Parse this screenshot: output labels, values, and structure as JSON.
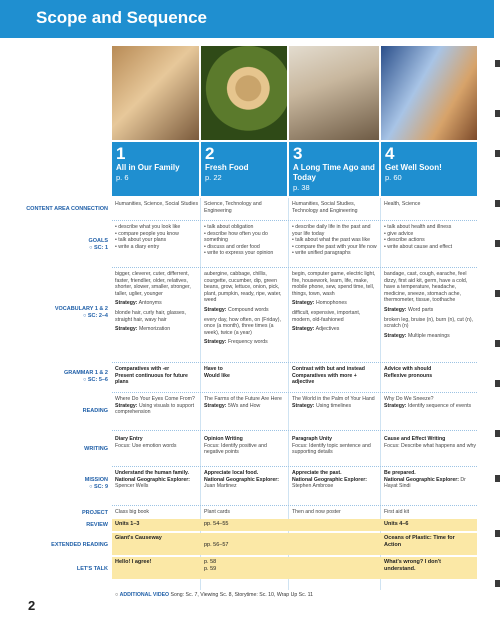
{
  "title": "Scope and Sequence",
  "page_number": "2",
  "units": [
    {
      "num": "1",
      "name": "All in Our Family",
      "page": "p. 6"
    },
    {
      "num": "2",
      "name": "Fresh Food",
      "page": "p. 22"
    },
    {
      "num": "3",
      "name": "A Long Time Ago and Today",
      "page": "p. 38"
    },
    {
      "num": "4",
      "name": "Get Well Soon!",
      "page": "p. 60"
    }
  ],
  "labels": {
    "content": "CONTENT AREA CONNECTION",
    "goals": "GOALS",
    "goals_sub": "SC: 1",
    "vocab": "VOCABULARY 1 & 2",
    "vocab_sub": "SC: 2–4",
    "grammar": "GRAMMAR 1 & 2",
    "grammar_sub": "SC: 5–6",
    "reading": "READING",
    "writing": "WRITING",
    "mission": "MISSION",
    "mission_sub": "SC: 9",
    "project": "PROJECT",
    "review": "REVIEW",
    "extended": "EXTENDED READING",
    "letstalk": "LET'S TALK"
  },
  "content": [
    "Humanities, Science, Social Studies",
    "Science, Technology and Engineering",
    "Humanities, Social Studies, Technology and Engineering",
    "Health, Science"
  ],
  "goals": [
    [
      "describe what you look like",
      "compare people you know",
      "talk about your plans",
      "write a diary entry"
    ],
    [
      "talk about obligation",
      "describe how often you do something",
      "discuss and order food",
      "write to express your opinion"
    ],
    [
      "describe daily life in the past and your life today",
      "talk about what the past was like",
      "compare the past with your life now",
      "write unified paragraphs"
    ],
    [
      "talk about health and illness",
      "give advice",
      "describe actions",
      "write about cause and effect"
    ]
  ],
  "vocab": [
    {
      "words": "bigger, cleverer, cuter, differrent, faster, friendlier, older, relatives, shorter, slower, smaller, stronger, taller, uglier, younger",
      "strat1": "Antonyms",
      "words2": "blonde hair, curly hair, glasses, straight hair, wavy hair",
      "strat2": "Memorization"
    },
    {
      "words": "aubergine, cabbage, chillis, courgette, cucumber, dip, green beans, grow, lettuce, onion, pick, plant, pumpkin, ready, ripe, water, weed",
      "strat1": "Compound words",
      "words2": "every day, how often, on (Friday), once (a month), three times (a week), twice (a year)",
      "strat2": "Frequency words"
    },
    {
      "words": "begin, computer game, electric light, fire, housework, learn, life, make, mobile phone, sew, spend time, tell, things, town, wash",
      "strat1": "Homophones",
      "words2": "difficult, expensive, important, modern, old-fashioned",
      "strat2": "Adjectives"
    },
    {
      "words": "bandage, cast, cough, earache, feel dizzy, first aid kit, germ, have a cold, have a temperature, headache, medicine, sneeze, stomach ache, thermometer, tissue, toothache",
      "strat1": "Word parts",
      "words2": "broken leg, bruise (n), burn (n), cut (n), scratch (n)",
      "strat2": "Multiple meanings"
    }
  ],
  "strategy_label": "Strategy:",
  "grammar": [
    {
      "a": "Comparatives with -er",
      "b": "Present continuous for future plans"
    },
    {
      "a": "Have to",
      "b": "Would like"
    },
    {
      "a": "Contrast with but and instead",
      "b": "Comparatives with more + adjective"
    },
    {
      "a": "Advice with should",
      "b": "Reflexive pronouns"
    }
  ],
  "reading": [
    {
      "text": "Where Do Your Eyes Come From?",
      "strat": "Using visuals to support comprehension"
    },
    {
      "text": "The Farms of the Future Are Here",
      "strat": "5Ws and How"
    },
    {
      "text": "The World in the Palm of Your Hand",
      "strat": "Using timelines"
    },
    {
      "text": "Why Do We Sneeze?",
      "strat": "Identify sequence of events"
    }
  ],
  "writing": [
    {
      "a": "Diary Entry",
      "b": "Focus: Use emotion words"
    },
    {
      "a": "Opinion Writing",
      "b": "Focus: Identify positive and negative points"
    },
    {
      "a": "Paragraph Unity",
      "b": "Focus: Identify topic sentence and supporting details"
    },
    {
      "a": "Cause and Effect Writing",
      "b": "Focus: Describe what happens and why"
    }
  ],
  "mission": [
    {
      "a": "Understand the human family.",
      "b": "National Geographic Explorer:",
      "c": "Spencer Wells"
    },
    {
      "a": "Appreciate local food.",
      "b": "National Geographic Explorer:",
      "c": "Juan Martinez"
    },
    {
      "a": "Appreciate the past.",
      "b": "National Geographic Explorer:",
      "c": "Stephen Ambrose"
    },
    {
      "a": "Be prepared.",
      "b": "National Geographic Explorer:",
      "c": "Dr Hayat Sindi"
    }
  ],
  "project": [
    "Class big book",
    "Plant cards",
    "Then and now poster",
    "First aid kit"
  ],
  "review": [
    "Units 1–3",
    "pp. 54–55",
    "Units 4–6"
  ],
  "extended": [
    "Giant's Causeway",
    "pp. 56–57",
    "Oceans of Plastic: Time for Action"
  ],
  "letstalk": [
    "Hello! I agree!",
    "p. 58",
    "p. 59",
    "What's wrong? I don't understand."
  ],
  "footer": {
    "label": "ADDITIONAL VIDEO",
    "text": "Song: Sc. 7, Viewing Sc. 8, Storytime: Sc. 10, Wrap Up Sc. 11"
  }
}
